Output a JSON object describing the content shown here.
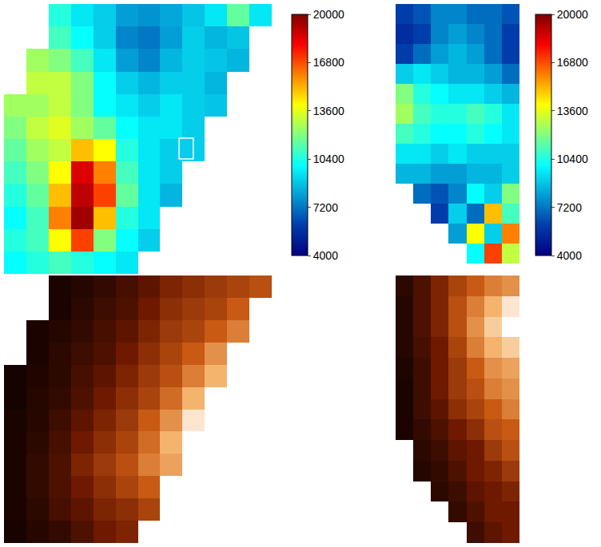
{
  "chart_data": [
    {
      "type": "heatmap",
      "color": "jet",
      "tick_labels": false,
      "zlim": [
        4000,
        20000
      ],
      "colorbar_ticks": [
        4000,
        7200,
        10400,
        13600,
        16800,
        20000
      ],
      "z": [
        [
          null,
          null,
          10500,
          9500,
          9000,
          8000,
          7800,
          8200,
          8800,
          9500,
          11500,
          9500
        ],
        [
          null,
          null,
          11000,
          10000,
          9000,
          7500,
          7200,
          8000,
          9000,
          8500,
          8800,
          null
        ],
        [
          null,
          12500,
          12000,
          11000,
          9500,
          8000,
          7500,
          8500,
          9000,
          8800,
          8500,
          null
        ],
        [
          null,
          13000,
          13000,
          12000,
          10000,
          9000,
          8500,
          9000,
          9000,
          8500,
          null,
          null
        ],
        [
          12500,
          12500,
          13000,
          12000,
          10000,
          9500,
          9000,
          9500,
          9000,
          8800,
          null,
          null
        ],
        [
          12000,
          13000,
          13500,
          12500,
          11500,
          10000,
          9500,
          9500,
          9000,
          null,
          null,
          null
        ],
        [
          11500,
          12500,
          13000,
          15000,
          14000,
          10500,
          9500,
          9000,
          9000,
          null,
          null,
          null
        ],
        [
          11000,
          12000,
          14000,
          18500,
          16000,
          11000,
          9500,
          9000,
          null,
          null,
          null,
          null
        ],
        [
          10500,
          11500,
          15000,
          19000,
          17000,
          11500,
          9500,
          8500,
          null,
          null,
          null,
          null
        ],
        [
          10000,
          11000,
          16000,
          19500,
          15000,
          10500,
          9500,
          null,
          null,
          null,
          null,
          null
        ],
        [
          10500,
          11000,
          14000,
          17000,
          12000,
          10000,
          9000,
          null,
          null,
          null,
          null,
          null
        ],
        [
          10000,
          10500,
          11000,
          10500,
          10000,
          9500,
          null,
          null,
          null,
          null,
          null,
          null
        ]
      ]
    },
    {
      "type": "heatmap",
      "color": "jet",
      "tick_labels": false,
      "zlim": [
        4000,
        20000
      ],
      "colorbar_ticks": [
        4000,
        7200,
        10400,
        13600,
        16800,
        20000
      ],
      "z": [
        [
          6000,
          6500,
          7500,
          7500,
          7000,
          7000,
          6500
        ],
        [
          5500,
          6000,
          7500,
          8000,
          7500,
          7000,
          6000
        ],
        [
          6000,
          7000,
          8000,
          8500,
          8000,
          7000,
          6000
        ],
        [
          9000,
          9500,
          9000,
          8500,
          8500,
          8000,
          7000
        ],
        [
          12000,
          10500,
          10000,
          9500,
          9500,
          9000,
          8500
        ],
        [
          12500,
          11000,
          10500,
          10500,
          11000,
          10500,
          9500
        ],
        [
          11000,
          10500,
          10000,
          10000,
          10500,
          10000,
          9500
        ],
        [
          9500,
          9500,
          9000,
          9500,
          9000,
          9000,
          9000
        ],
        [
          8500,
          8500,
          8000,
          8000,
          8500,
          8500,
          9000
        ],
        [
          null,
          7000,
          6500,
          7500,
          10000,
          9000,
          12000
        ],
        [
          null,
          null,
          6000,
          9000,
          7000,
          15000,
          11000
        ],
        [
          null,
          null,
          null,
          8000,
          14000,
          9000,
          16000
        ],
        [
          null,
          null,
          null,
          null,
          10000,
          17000,
          13000
        ]
      ]
    },
    {
      "type": "heatmap",
      "color": "hot",
      "tick_labels": false,
      "zlim": [
        0,
        1
      ],
      "z": [
        [
          null,
          null,
          0.05,
          0.08,
          0.12,
          0.18,
          0.25,
          0.35,
          0.4,
          0.45,
          0.5,
          0.55
        ],
        [
          null,
          null,
          0.05,
          0.1,
          0.15,
          0.2,
          0.3,
          0.4,
          0.45,
          0.5,
          0.6,
          null
        ],
        [
          null,
          0.05,
          0.08,
          0.12,
          0.18,
          0.25,
          0.35,
          0.45,
          0.5,
          0.6,
          0.7,
          null
        ],
        [
          null,
          0.05,
          0.1,
          0.15,
          0.2,
          0.3,
          0.4,
          0.5,
          0.6,
          0.75,
          null,
          null
        ],
        [
          0.03,
          0.06,
          0.1,
          0.18,
          0.25,
          0.35,
          0.45,
          0.55,
          0.7,
          0.85,
          null,
          null
        ],
        [
          0.03,
          0.08,
          0.12,
          0.2,
          0.3,
          0.4,
          0.5,
          0.65,
          0.85,
          null,
          null,
          null
        ],
        [
          0.05,
          0.08,
          0.15,
          0.25,
          0.35,
          0.45,
          0.6,
          0.75,
          0.95,
          null,
          null,
          null
        ],
        [
          0.05,
          0.1,
          0.18,
          0.3,
          0.4,
          0.5,
          0.65,
          0.85,
          null,
          null,
          null,
          null
        ],
        [
          0.05,
          0.12,
          0.2,
          0.35,
          0.45,
          0.55,
          0.7,
          0.8,
          null,
          null,
          null,
          null
        ],
        [
          0.05,
          0.12,
          0.2,
          0.3,
          0.4,
          0.5,
          0.6,
          null,
          null,
          null,
          null,
          null
        ],
        [
          0.05,
          0.1,
          0.18,
          0.25,
          0.35,
          0.4,
          0.5,
          null,
          null,
          null,
          null,
          null
        ],
        [
          0.04,
          0.08,
          0.12,
          0.2,
          0.3,
          0.35,
          null,
          null,
          null,
          null,
          null,
          null
        ]
      ]
    },
    {
      "type": "heatmap",
      "color": "hot",
      "tick_labels": false,
      "zlim": [
        0,
        1
      ],
      "z": [
        [
          0.1,
          0.2,
          0.35,
          0.5,
          0.6,
          0.7,
          0.75
        ],
        [
          0.08,
          0.2,
          0.35,
          0.55,
          0.7,
          0.85,
          0.95
        ],
        [
          0.08,
          0.2,
          0.35,
          0.55,
          0.75,
          0.9,
          1.0
        ],
        [
          0.08,
          0.18,
          0.3,
          0.5,
          0.7,
          0.85,
          0.9
        ],
        [
          0.06,
          0.15,
          0.3,
          0.45,
          0.6,
          0.75,
          0.8
        ],
        [
          0.05,
          0.15,
          0.3,
          0.45,
          0.55,
          0.7,
          0.75
        ],
        [
          0.05,
          0.15,
          0.25,
          0.4,
          0.5,
          0.6,
          0.7
        ],
        [
          0.05,
          0.12,
          0.2,
          0.3,
          0.4,
          0.55,
          0.6
        ],
        [
          null,
          0.1,
          0.15,
          0.25,
          0.3,
          0.45,
          0.55
        ],
        [
          null,
          0.08,
          0.12,
          0.2,
          0.3,
          0.35,
          0.45
        ],
        [
          null,
          null,
          0.1,
          0.15,
          0.25,
          0.3,
          0.35
        ],
        [
          null,
          null,
          null,
          0.12,
          0.2,
          0.3,
          0.3
        ],
        [
          null,
          null,
          null,
          null,
          0.15,
          0.25,
          0.3
        ]
      ]
    }
  ]
}
